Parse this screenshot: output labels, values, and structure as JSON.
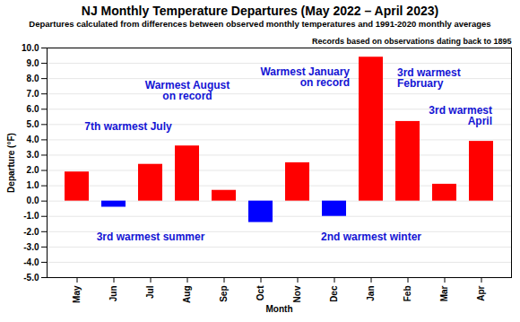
{
  "chart_data": {
    "type": "bar",
    "title": "NJ Monthly Temperature Departures (May 2022 – April 2023)",
    "subtitle": "Departures calculated from differences between observed monthly temperatures and 1991-2020 monthly averages",
    "x_label": "Month",
    "y_label": "Departure (°F)",
    "categories": [
      "May",
      "Jun",
      "Jul",
      "Aug",
      "Sep",
      "Oct",
      "Nov",
      "Dec",
      "Jan",
      "Feb",
      "Mar",
      "Apr"
    ],
    "values": [
      1.9,
      -0.4,
      2.4,
      3.6,
      0.7,
      -1.4,
      2.5,
      -1.0,
      9.4,
      5.2,
      1.1,
      3.9
    ],
    "colors": [
      "#ff0000",
      "#0000ff",
      "#ff0000",
      "#ff0000",
      "#ff0000",
      "#0000ff",
      "#ff0000",
      "#0000ff",
      "#ff0000",
      "#ff0000",
      "#ff0000",
      "#ff0000"
    ],
    "ylim": [
      -5,
      10
    ],
    "yticks": [
      {
        "value": -5,
        "label": "-5.0"
      },
      {
        "value": -4,
        "label": "-4.0"
      },
      {
        "value": -3,
        "label": "-3.0"
      },
      {
        "value": -2,
        "label": "-2.0"
      },
      {
        "value": -1,
        "label": "-1.0"
      },
      {
        "value": 0,
        "label": "0.0"
      },
      {
        "value": 1,
        "label": "1.0"
      },
      {
        "value": 2,
        "label": "2.0"
      },
      {
        "value": 3,
        "label": "3.0"
      },
      {
        "value": 4,
        "label": "4.0"
      },
      {
        "value": 5,
        "label": "5.0"
      },
      {
        "value": 6,
        "label": "6.0"
      },
      {
        "value": 7,
        "label": "7.0"
      },
      {
        "value": 8,
        "label": "8.0"
      },
      {
        "value": 9,
        "label": "9.0"
      },
      {
        "value": 10,
        "label": "10.0"
      }
    ],
    "grid": true,
    "annotations": [
      {
        "text": "7th warmest July",
        "category": "Jul"
      },
      {
        "text": "Warmest August on record",
        "category": "Aug"
      },
      {
        "text": "3rd warmest summer",
        "span": [
          "Jun",
          "Aug"
        ]
      },
      {
        "text": "Warmest January on record",
        "category": "Jan"
      },
      {
        "text": "3rd warmest February",
        "category": "Feb"
      },
      {
        "text": "2nd warmest winter",
        "span": [
          "Dec",
          "Feb"
        ]
      },
      {
        "text": "3rd warmest April",
        "category": "Apr"
      },
      {
        "text": "Records based on observations dating back to 1895"
      }
    ]
  }
}
